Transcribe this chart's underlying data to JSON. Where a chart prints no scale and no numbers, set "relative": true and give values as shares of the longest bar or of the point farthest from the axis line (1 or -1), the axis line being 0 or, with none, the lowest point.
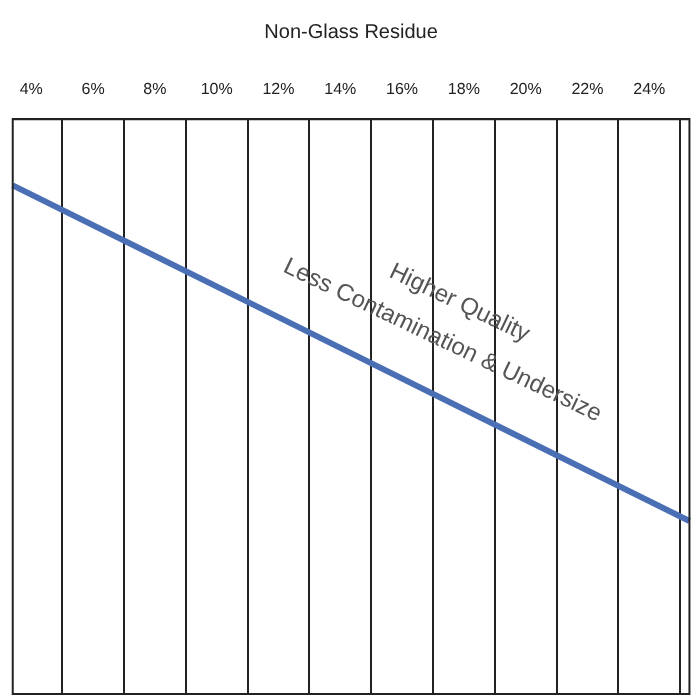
{
  "chart_data": {
    "type": "line",
    "xlabel": "Non-Glass Residue",
    "relative": true,
    "series": [
      {
        "color": "#4a6fb5",
        "x": [
          3.4,
          25.3
        ],
        "values": [
          1,
          0.34
        ]
      }
    ],
    "xlim": [
      3.4,
      25.3
    ],
    "xticks": [
      {
        "value": 4,
        "label": "4%"
      },
      {
        "value": 5,
        "label": null
      },
      {
        "value": 6,
        "label": "6%"
      },
      {
        "value": 7,
        "label": null
      },
      {
        "value": 8,
        "label": "8%"
      },
      {
        "value": 9,
        "label": null
      },
      {
        "value": 10,
        "label": "10%"
      },
      {
        "value": 11,
        "label": null
      },
      {
        "value": 12,
        "label": "12%"
      },
      {
        "value": 13,
        "label": null
      },
      {
        "value": 14,
        "label": "14%"
      },
      {
        "value": 15,
        "label": null
      },
      {
        "value": 16,
        "label": "16%"
      },
      {
        "value": 17,
        "label": null
      },
      {
        "value": 18,
        "label": "18%"
      },
      {
        "value": 19,
        "label": null
      },
      {
        "value": 20,
        "label": "20%"
      },
      {
        "value": 21,
        "label": null
      },
      {
        "value": 22,
        "label": "22%"
      },
      {
        "value": 23,
        "label": null
      },
      {
        "value": 24,
        "label": "24%"
      },
      {
        "value": 25,
        "label": null
      }
    ],
    "grid": "x",
    "legend": false,
    "marker": "none",
    "line_style": "solid",
    "annotations": [
      "Higher Quality",
      "Less Contamination & Undersize"
    ]
  }
}
